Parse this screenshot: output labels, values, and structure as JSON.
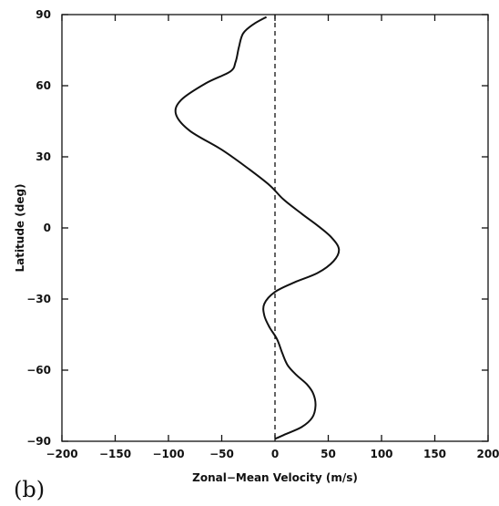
{
  "chart_data": {
    "type": "line",
    "panel_label": "(b)",
    "xlabel": "Zonal−Mean Velocity (m/s)",
    "ylabel": "Latitude (deg)",
    "xlim": [
      -200,
      200
    ],
    "ylim": [
      -90,
      90
    ],
    "x_ticks": [
      -200,
      -150,
      -100,
      -50,
      0,
      50,
      100,
      150,
      200
    ],
    "x_tick_labels": [
      "−200",
      "−150",
      "−100",
      "−50",
      "0",
      "50",
      "100",
      "150",
      "200"
    ],
    "y_ticks": [
      -90,
      -60,
      -30,
      0,
      30,
      60,
      90
    ],
    "y_tick_labels": [
      "−90",
      "−60",
      "−30",
      "0",
      "30",
      "60",
      "90"
    ],
    "grid": false,
    "reference_line": {
      "x": 0,
      "style": "dashed"
    },
    "series": [
      {
        "points": [
          [
            0,
            -89
          ],
          [
            10,
            -87
          ],
          [
            25,
            -84
          ],
          [
            35,
            -80
          ],
          [
            38,
            -75
          ],
          [
            36,
            -70
          ],
          [
            30,
            -66
          ],
          [
            20,
            -62
          ],
          [
            12,
            -58
          ],
          [
            7,
            -53
          ],
          [
            2,
            -47
          ],
          [
            -5,
            -42
          ],
          [
            -10,
            -37
          ],
          [
            -10,
            -32
          ],
          [
            0,
            -27
          ],
          [
            18,
            -23
          ],
          [
            40,
            -19
          ],
          [
            55,
            -14
          ],
          [
            60,
            -9
          ],
          [
            53,
            -4
          ],
          [
            40,
            1
          ],
          [
            25,
            6
          ],
          [
            8,
            12
          ],
          [
            -5,
            18
          ],
          [
            -25,
            25
          ],
          [
            -50,
            33
          ],
          [
            -80,
            41
          ],
          [
            -93,
            48
          ],
          [
            -88,
            54
          ],
          [
            -65,
            61
          ],
          [
            -42,
            66
          ],
          [
            -37,
            70
          ],
          [
            -34,
            76
          ],
          [
            -30,
            82
          ],
          [
            -20,
            86
          ],
          [
            -8,
            89
          ]
        ]
      }
    ]
  }
}
